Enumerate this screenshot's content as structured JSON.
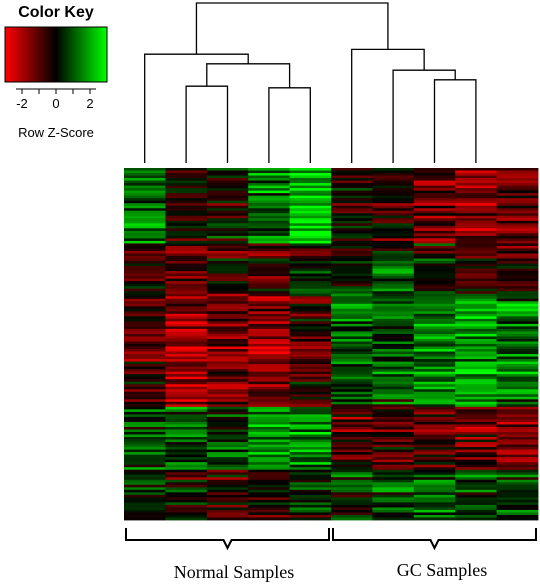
{
  "chart_data": {
    "type": "heatmap",
    "color_key": {
      "title": "Color Key",
      "label": "Row Z-Score",
      "ticks": [
        -2,
        0,
        2
      ],
      "tick_labels": [
        "-2",
        "0",
        "2"
      ],
      "range": [
        -3,
        3
      ],
      "colors": {
        "low": "#ff0000",
        "mid": "#000000",
        "high": "#00ff00"
      }
    },
    "groups": [
      {
        "label": "Normal Samples",
        "columns": 5
      },
      {
        "label": "GC Samples",
        "columns": 5
      }
    ],
    "n_columns": 10,
    "n_rows": 140,
    "row_blocks": [
      {
        "rows": 30,
        "means": [
          0.8,
          -0.2,
          -0.1,
          0.9,
          1.4,
          -0.2,
          -0.4,
          -0.8,
          -1.0,
          -0.9
        ]
      },
      {
        "rows": 20,
        "means": [
          -0.4,
          -0.7,
          -0.4,
          -0.3,
          0.0,
          0.3,
          0.5,
          0.0,
          -0.4,
          -0.3
        ]
      },
      {
        "rows": 45,
        "means": [
          -0.6,
          -1.3,
          -0.9,
          -1.2,
          -0.5,
          0.6,
          0.5,
          1.0,
          1.1,
          0.8
        ]
      },
      {
        "rows": 25,
        "means": [
          0.5,
          0.6,
          0.4,
          1.2,
          1.1,
          -0.7,
          -0.5,
          -0.6,
          -0.8,
          -1.0
        ]
      },
      {
        "rows": 20,
        "means": [
          0.2,
          -0.2,
          -0.4,
          -0.3,
          0.2,
          0.2,
          0.6,
          0.7,
          0.4,
          0.5
        ]
      }
    ],
    "dendrogram": {
      "merges": [
        {
          "a": "c1",
          "b": "c2",
          "height": 0.48
        },
        {
          "a": "c3",
          "b": "c4",
          "height": 0.47
        },
        {
          "a": "m1",
          "b": "m2",
          "height": 0.62
        },
        {
          "a": "c0",
          "b": "m3",
          "height": 0.68
        },
        {
          "a": "c7",
          "b": "c8",
          "height": 0.52
        },
        {
          "a": "c6",
          "b": "m5",
          "height": 0.58
        },
        {
          "a": "c5",
          "b": "m6",
          "height": 0.71
        },
        {
          "a": "m4",
          "b": "m7",
          "height": 1.0
        }
      ]
    }
  }
}
